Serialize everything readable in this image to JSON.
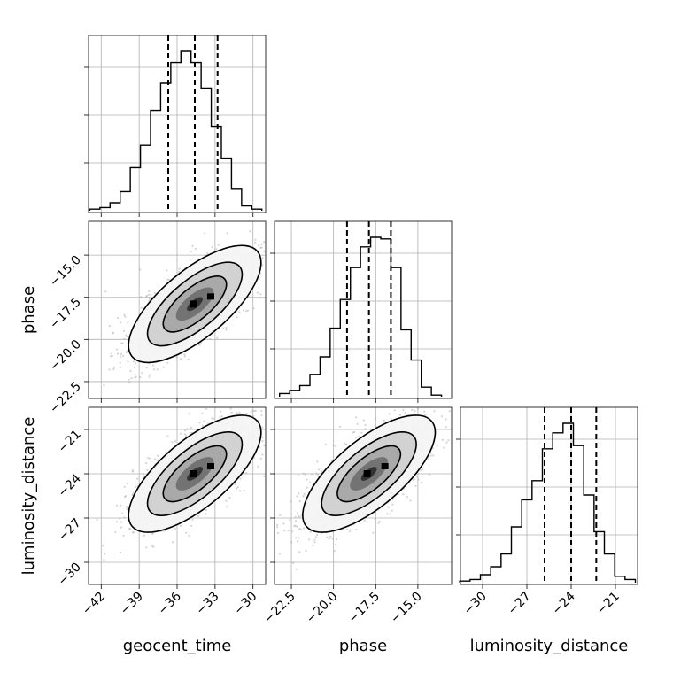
{
  "chart_data": [
    {
      "type": "histogram",
      "parameter": "geocent_time",
      "xlim": [
        -43,
        -29
      ],
      "bins": [
        -42.5,
        -41.7,
        -40.9,
        -40.1,
        -39.3,
        -38.5,
        -37.7,
        -36.9,
        -36.1,
        -35.3,
        -34.5,
        -33.7,
        -32.9,
        -32.1,
        -31.3,
        -30.5,
        -29.7
      ],
      "counts": [
        0.01,
        0.02,
        0.05,
        0.12,
        0.27,
        0.41,
        0.63,
        0.8,
        0.93,
        1.0,
        0.93,
        0.77,
        0.53,
        0.33,
        0.14,
        0.03,
        0.01
      ],
      "quantiles": [
        -36.7,
        -34.6,
        -32.8
      ],
      "grid": true
    },
    {
      "type": "histogram",
      "parameter": "phase",
      "xlim": [
        -23.5,
        -13.0
      ],
      "bins": [
        -22.9,
        -22.3,
        -21.7,
        -21.1,
        -20.5,
        -19.9,
        -19.3,
        -18.7,
        -18.1,
        -17.5,
        -16.9,
        -16.3,
        -15.7,
        -15.1,
        -14.5,
        -13.9
      ],
      "counts": [
        0.02,
        0.04,
        0.07,
        0.14,
        0.25,
        0.43,
        0.61,
        0.81,
        0.94,
        1.0,
        0.99,
        0.81,
        0.42,
        0.23,
        0.06,
        0.01
      ],
      "quantiles": [
        -19.2,
        -17.9,
        -16.6
      ],
      "grid": true
    },
    {
      "type": "histogram",
      "parameter": "luminosity_distance",
      "xlim": [
        -31.5,
        -19.5
      ],
      "bins": [
        -31.2,
        -30.5,
        -29.8,
        -29.1,
        -28.4,
        -27.7,
        -27.0,
        -26.3,
        -25.6,
        -24.9,
        -24.2,
        -23.5,
        -22.8,
        -22.1,
        -21.4,
        -20.7,
        -20.0
      ],
      "counts": [
        0.01,
        0.02,
        0.05,
        0.1,
        0.18,
        0.35,
        0.52,
        0.64,
        0.84,
        0.94,
        1.0,
        0.86,
        0.55,
        0.32,
        0.18,
        0.04,
        0.02
      ],
      "quantiles": [
        -25.8,
        -24.0,
        -22.3
      ],
      "grid": true
    },
    {
      "type": "scatter",
      "x_parameter": "geocent_time",
      "y_parameter": "phase",
      "xlim": [
        -43,
        -29
      ],
      "ylim": [
        -23.5,
        -13.0
      ],
      "center": [
        -34.6,
        -17.9
      ],
      "grid": true
    },
    {
      "type": "scatter",
      "x_parameter": "geocent_time",
      "y_parameter": "luminosity_distance",
      "xlim": [
        -43,
        -29
      ],
      "ylim": [
        -31.5,
        -19.5
      ],
      "center": [
        -34.6,
        -24.0
      ],
      "grid": true
    },
    {
      "type": "scatter",
      "x_parameter": "phase",
      "y_parameter": "luminosity_distance",
      "xlim": [
        -23.5,
        -13.0
      ],
      "ylim": [
        -31.5,
        -19.5
      ],
      "center": [
        -17.9,
        -24.0
      ],
      "grid": true
    }
  ],
  "axes": {
    "geocent_time": {
      "label": "geocent_time",
      "ticks": [
        -42,
        -39,
        -36,
        -33,
        -30
      ],
      "tick_labels": [
        "−42",
        "−39",
        "−36",
        "−33",
        "−30"
      ]
    },
    "phase": {
      "label": "phase",
      "ticks": [
        -22.5,
        -20.0,
        -17.5,
        -15.0
      ],
      "tick_labels": [
        "−22.5",
        "−20.0",
        "−17.5",
        "−15.0"
      ]
    },
    "luminosity_distance": {
      "label": "luminosity_distance",
      "ticks": [
        -30,
        -27,
        -24,
        -21
      ],
      "tick_labels": [
        "−30",
        "−27",
        "−24",
        "−21"
      ]
    }
  },
  "colors": {
    "points": "#a9a9a9",
    "line": "#000000",
    "grid": "#b0b0b0",
    "contour_fill": [
      "#f4f4f4",
      "#d0d0d0",
      "#a6a6a6",
      "#707070",
      "#2e2e2e"
    ]
  }
}
